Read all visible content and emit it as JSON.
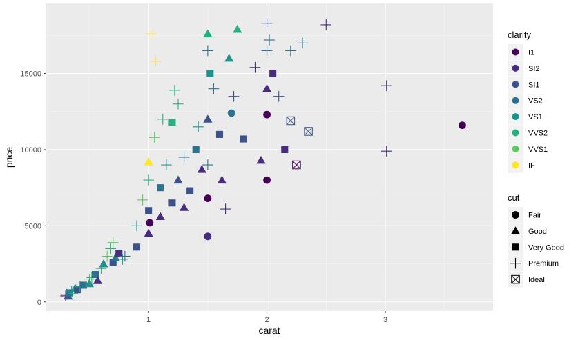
{
  "chart_data": {
    "type": "scatter",
    "title": "",
    "xlabel": "carat",
    "ylabel": "price",
    "xlim": [
      0.13,
      3.91
    ],
    "ylim": [
      -600,
      19600
    ],
    "x_ticks": [
      1,
      2,
      3
    ],
    "x_tick_labels": [
      "1",
      "2",
      "3"
    ],
    "y_ticks": [
      0,
      5000,
      10000,
      15000
    ],
    "y_tick_labels": [
      "0",
      "5000",
      "10000",
      "15000"
    ],
    "grid": true,
    "panel_background": "#ebebeb",
    "grid_color": "#ffffff",
    "legend_placement": "right",
    "legends": {
      "clarity": {
        "title": "clarity",
        "levels": [
          "I1",
          "SI2",
          "SI1",
          "VS2",
          "VS1",
          "VVS2",
          "VVS1",
          "IF"
        ],
        "colors": [
          "#440154",
          "#472d7b",
          "#3b528b",
          "#2c728e",
          "#21918c",
          "#28ae80",
          "#5ec962",
          "#fde725"
        ]
      },
      "cut": {
        "title": "cut",
        "levels": [
          "Fair",
          "Good",
          "Very Good",
          "Premium",
          "Ideal"
        ],
        "shapes": [
          "circle",
          "triangle",
          "square",
          "plus",
          "square-cross"
        ]
      }
    },
    "points": [
      [
        0.3,
        400,
        1,
        4
      ],
      [
        0.31,
        500,
        2,
        4
      ],
      [
        0.32,
        380,
        3,
        2
      ],
      [
        0.33,
        600,
        4,
        3
      ],
      [
        0.35,
        700,
        5,
        4
      ],
      [
        0.36,
        550,
        6,
        4
      ],
      [
        0.38,
        900,
        5,
        2
      ],
      [
        0.4,
        800,
        3,
        3
      ],
      [
        0.42,
        1000,
        6,
        4
      ],
      [
        0.45,
        1100,
        4,
        3
      ],
      [
        0.5,
        1500,
        7,
        4
      ],
      [
        0.5,
        1200,
        5,
        2
      ],
      [
        0.52,
        1600,
        6,
        4
      ],
      [
        0.55,
        1800,
        4,
        3
      ],
      [
        0.57,
        1400,
        2,
        2
      ],
      [
        0.6,
        2200,
        6,
        4
      ],
      [
        0.62,
        2500,
        5,
        2
      ],
      [
        0.65,
        3000,
        7,
        4
      ],
      [
        0.68,
        3500,
        6,
        4
      ],
      [
        0.7,
        3900,
        7,
        4
      ],
      [
        0.7,
        2600,
        3,
        3
      ],
      [
        0.72,
        2900,
        4,
        2
      ],
      [
        0.75,
        3200,
        2,
        3
      ],
      [
        0.78,
        2800,
        5,
        4
      ],
      [
        0.8,
        3000,
        4,
        4
      ],
      [
        0.9,
        3600,
        3,
        3
      ],
      [
        0.9,
        5000,
        5,
        4
      ],
      [
        0.95,
        6700,
        7,
        4
      ],
      [
        1.0,
        4500,
        2,
        2
      ],
      [
        1.0,
        6000,
        3,
        3
      ],
      [
        1.0,
        8000,
        6,
        4
      ],
      [
        1.0,
        9200,
        8,
        2
      ],
      [
        1.01,
        5200,
        1,
        1
      ],
      [
        1.02,
        17600,
        8,
        4
      ],
      [
        1.05,
        10800,
        7,
        4
      ],
      [
        1.06,
        15800,
        8,
        4
      ],
      [
        1.1,
        7500,
        4,
        3
      ],
      [
        1.1,
        5600,
        2,
        2
      ],
      [
        1.12,
        12000,
        6,
        4
      ],
      [
        1.15,
        9000,
        5,
        4
      ],
      [
        1.2,
        6500,
        3,
        3
      ],
      [
        1.2,
        11800,
        6,
        3
      ],
      [
        1.22,
        13900,
        6,
        4
      ],
      [
        1.25,
        13000,
        6,
        4
      ],
      [
        1.25,
        8000,
        3,
        2
      ],
      [
        1.3,
        6200,
        2,
        2
      ],
      [
        1.3,
        9500,
        4,
        4
      ],
      [
        1.35,
        7300,
        3,
        3
      ],
      [
        1.4,
        10000,
        4,
        3
      ],
      [
        1.42,
        11500,
        5,
        4
      ],
      [
        1.45,
        8700,
        2,
        2
      ],
      [
        1.5,
        17600,
        6,
        2
      ],
      [
        1.5,
        16500,
        4,
        4
      ],
      [
        1.5,
        12000,
        3,
        2
      ],
      [
        1.5,
        9000,
        4,
        4
      ],
      [
        1.5,
        6800,
        1,
        1
      ],
      [
        1.5,
        4300,
        2,
        1
      ],
      [
        1.52,
        15000,
        5,
        3
      ],
      [
        1.55,
        14000,
        4,
        4
      ],
      [
        1.6,
        11000,
        3,
        3
      ],
      [
        1.62,
        8000,
        2,
        2
      ],
      [
        1.65,
        6100,
        2,
        4
      ],
      [
        1.68,
        16000,
        5,
        2
      ],
      [
        1.7,
        12400,
        4,
        1
      ],
      [
        1.72,
        13500,
        3,
        4
      ],
      [
        1.75,
        17900,
        6,
        2
      ],
      [
        1.8,
        10700,
        3,
        3
      ],
      [
        1.9,
        15400,
        2,
        4
      ],
      [
        1.95,
        9300,
        2,
        2
      ],
      [
        2.0,
        18300,
        3,
        4
      ],
      [
        2.0,
        16500,
        4,
        4
      ],
      [
        2.0,
        14000,
        2,
        2
      ],
      [
        2.0,
        12300,
        1,
        1
      ],
      [
        2.0,
        8000,
        1,
        1
      ],
      [
        2.02,
        17200,
        4,
        4
      ],
      [
        2.05,
        15000,
        2,
        3
      ],
      [
        2.1,
        13500,
        3,
        4
      ],
      [
        2.15,
        10000,
        2,
        3
      ],
      [
        2.2,
        16500,
        4,
        4
      ],
      [
        2.2,
        11900,
        3,
        5
      ],
      [
        2.25,
        9000,
        1,
        5
      ],
      [
        2.3,
        17000,
        4,
        4
      ],
      [
        2.35,
        11200,
        3,
        5
      ],
      [
        2.5,
        18200,
        2,
        4
      ],
      [
        3.01,
        14200,
        2,
        4
      ],
      [
        3.01,
        9900,
        2,
        4
      ],
      [
        3.65,
        11600,
        1,
        1
      ]
    ]
  }
}
